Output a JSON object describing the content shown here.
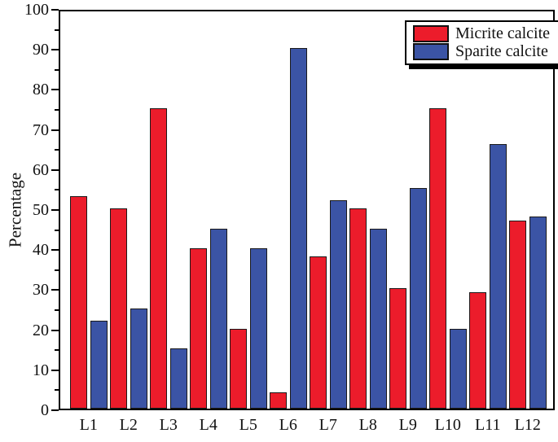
{
  "chart_data": {
    "type": "bar",
    "title": "",
    "xlabel": "",
    "ylabel": "Percentage",
    "categories": [
      "L1",
      "L2",
      "L3",
      "L4",
      "L5",
      "L6",
      "L7",
      "L8",
      "L9",
      "L10",
      "L11",
      "L12"
    ],
    "series": [
      {
        "name": "Micrite calcite",
        "color": "#ec1c2b",
        "values": [
          53,
          50,
          75,
          40,
          20,
          4,
          38,
          50,
          30,
          75,
          29,
          47
        ]
      },
      {
        "name": "Sparite calcite",
        "color": "#3b54a5",
        "values": [
          22,
          25,
          15,
          45,
          40,
          90,
          52,
          45,
          55,
          20,
          66,
          48
        ]
      }
    ],
    "ylim": [
      0,
      100
    ],
    "yticks": [
      0,
      10,
      20,
      30,
      40,
      50,
      60,
      70,
      80,
      90,
      100
    ],
    "yminor_step": 5,
    "grid": false,
    "legend_position": "top-right",
    "bar_outline_color": "#1a1a1a",
    "axis_color": "#000000"
  }
}
